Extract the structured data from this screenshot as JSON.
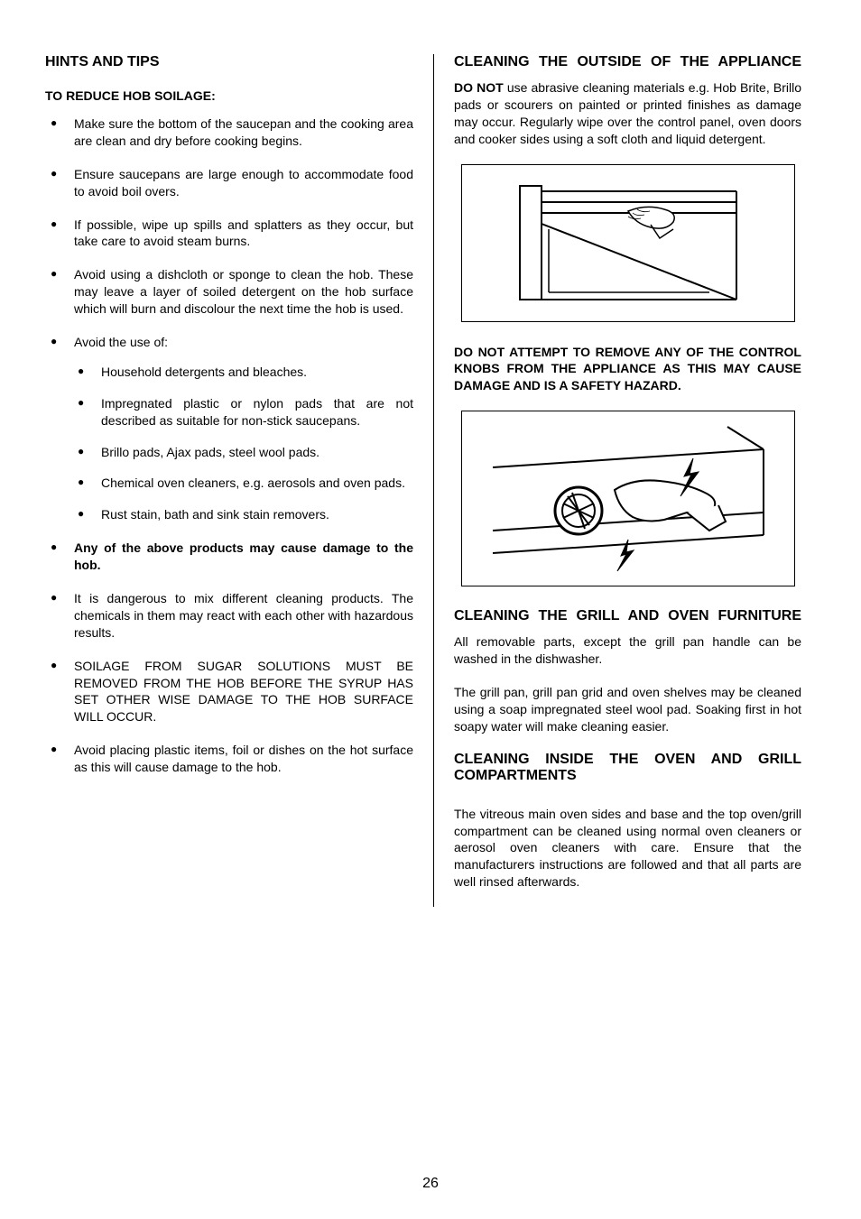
{
  "pageNumber": "26",
  "left": {
    "heading": "HINTS AND TIPS",
    "subheading": "TO REDUCE HOB SOILAGE:",
    "items": [
      {
        "text": "Make sure the bottom of the saucepan and the cooking area are clean and dry before cooking begins."
      },
      {
        "text": "Ensure saucepans are large enough to accommodate food to avoid boil overs."
      },
      {
        "text": "If possible, wipe up spills and splatters as they occur, but take care to avoid steam burns."
      },
      {
        "text": "Avoid using a dishcloth or sponge to clean the hob.  These may leave a layer of soiled detergent on the hob surface which will burn and discolour the next time the hob is used."
      },
      {
        "text": "Avoid the use of:",
        "sub": [
          "Household detergents and bleaches.",
          "Impregnated plastic or nylon pads that are not described as suitable for non-stick saucepans.",
          "Brillo pads, Ajax pads, steel wool pads.",
          "Chemical oven cleaners, e.g. aerosols and oven pads.",
          "Rust stain, bath and sink stain removers."
        ]
      },
      {
        "text": "Any of the above products may cause damage to the hob.",
        "bold": true
      },
      {
        "text": "It is dangerous to mix different cleaning products. The chemicals in them may react with each other with hazardous results."
      },
      {
        "text": "SOILAGE FROM SUGAR SOLUTIONS MUST BE REMOVED FROM THE HOB BEFORE THE SYRUP HAS SET OTHER WISE DAMAGE TO THE HOB SURFACE WILL OCCUR."
      },
      {
        "text": "Avoid placing plastic items, foil or dishes on the hot surface as this will cause damage to the hob."
      }
    ]
  },
  "right": {
    "section1": {
      "heading": "CLEANING THE OUTSIDE OF THE APPLIANCE",
      "doNotBold": "DO NOT",
      "paragraph1Rest": " use abrasive cleaning materials e.g. Hob Brite, Brillo pads or scourers on painted or printed finishes as damage may occur.  Regularly wipe over the control panel, oven doors and cooker sides using a soft cloth and liquid detergent.",
      "warning": "DO NOT ATTEMPT TO REMOVE ANY OF THE CONTROL KNOBS FROM THE APPLIANCE AS THIS MAY CAUSE DAMAGE AND IS A SAFETY HAZARD."
    },
    "section2": {
      "heading": "CLEANING THE GRILL AND OVEN FURNITURE",
      "p1": "All removable parts, except the grill pan handle can be washed in the dishwasher.",
      "p2": "The grill pan, grill pan grid and oven shelves may be cleaned using a soap impregnated steel wool pad. Soaking first in hot soapy water will make cleaning easier."
    },
    "section3": {
      "heading": "CLEANING INSIDE THE OVEN AND GRILL COMPARTMENTS",
      "p1": "The vitreous main oven sides and base and the top oven/grill compartment can be cleaned using normal oven cleaners or aerosol oven cleaners with care. Ensure that the manufacturers instructions are followed and that all parts are well rinsed afterwards."
    }
  }
}
